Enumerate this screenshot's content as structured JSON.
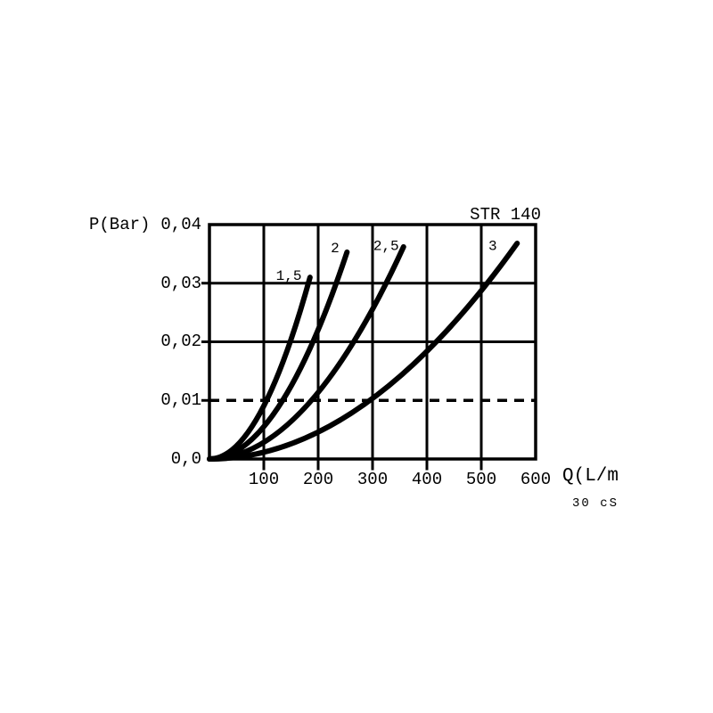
{
  "title": "STR 140",
  "colors": {
    "ink": "#000000",
    "background": "#ffffff"
  },
  "chart_data": {
    "type": "line",
    "title": "STR 140",
    "ylabel": "P(Bar)",
    "xlabel": "Q(L/m",
    "xlabel_note": "30 cS",
    "xlim": [
      0,
      600
    ],
    "ylim": [
      0,
      0.04
    ],
    "grid": true,
    "reference_line": {
      "axis": "y",
      "value": 0.01,
      "style": "dashed"
    },
    "x_ticks": [
      {
        "value": 100,
        "label": "100"
      },
      {
        "value": 200,
        "label": "200"
      },
      {
        "value": 300,
        "label": "300"
      },
      {
        "value": 400,
        "label": "400"
      },
      {
        "value": 500,
        "label": "500"
      },
      {
        "value": 600,
        "label": "600"
      }
    ],
    "y_ticks": [
      {
        "value": 0,
        "label": "0,0"
      },
      {
        "value": 0.01,
        "label": "0,01"
      },
      {
        "value": 0.02,
        "label": "0,02"
      },
      {
        "value": 0.03,
        "label": "0,03"
      },
      {
        "value": 0.04,
        "label": "0,04"
      }
    ],
    "series": [
      {
        "name": "1,5",
        "label_at": [
          146,
          0.0312
        ],
        "points": [
          [
            0,
            0
          ],
          [
            23,
            0.0005
          ],
          [
            46,
            0.0019
          ],
          [
            69,
            0.0043
          ],
          [
            93,
            0.0078
          ],
          [
            116,
            0.0122
          ],
          [
            139,
            0.0175
          ],
          [
            162,
            0.0238
          ],
          [
            185,
            0.031
          ]
        ]
      },
      {
        "name": "2",
        "label_at": [
          231,
          0.0359
        ],
        "points": [
          [
            0,
            0
          ],
          [
            32,
            0.0006
          ],
          [
            63,
            0.0022
          ],
          [
            95,
            0.005
          ],
          [
            127,
            0.0089
          ],
          [
            158,
            0.0138
          ],
          [
            190,
            0.0199
          ],
          [
            221,
            0.0269
          ],
          [
            253,
            0.0353
          ]
        ]
      },
      {
        "name": "2,5",
        "label_at": [
          325,
          0.0363
        ],
        "points": [
          [
            0,
            0
          ],
          [
            45,
            0.0006
          ],
          [
            89,
            0.0023
          ],
          [
            134,
            0.0051
          ],
          [
            179,
            0.0091
          ],
          [
            223,
            0.0141
          ],
          [
            268,
            0.0204
          ],
          [
            312,
            0.0277
          ],
          [
            357,
            0.0362
          ]
        ]
      },
      {
        "name": "3",
        "label_at": [
          521,
          0.0363
        ],
        "points": [
          [
            0,
            0
          ],
          [
            71,
            0.0006
          ],
          [
            142,
            0.0023
          ],
          [
            212,
            0.0052
          ],
          [
            283,
            0.0092
          ],
          [
            354,
            0.0144
          ],
          [
            425,
            0.0207
          ],
          [
            495,
            0.0281
          ],
          [
            566,
            0.0368
          ]
        ]
      }
    ]
  }
}
